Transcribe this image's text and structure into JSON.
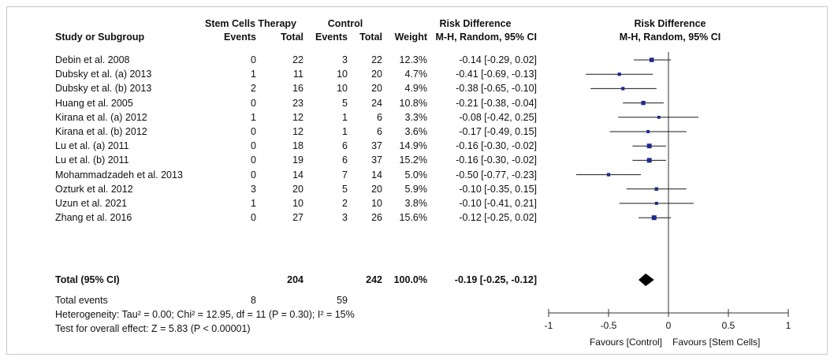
{
  "chart_data": {
    "type": "forest",
    "group_headers": {
      "experimental": "Stem Cells Therapy",
      "control": "Control",
      "effect_stat": "Risk Difference",
      "effect_plot": "Risk Difference"
    },
    "column_headers": {
      "study": "Study or Subgroup",
      "exp_events": "Events",
      "exp_total": "Total",
      "ctl_events": "Events",
      "ctl_total": "Total",
      "weight": "Weight",
      "method_stat": "M-H, Random, 95% CI",
      "method_plot": "M-H, Random, 95% CI"
    },
    "studies": [
      {
        "name": "Debin et al. 2008",
        "exp_events": "0",
        "exp_total": "22",
        "ctl_events": "3",
        "ctl_total": "22",
        "weight": "12.3%",
        "ci_text": "-0.14 [-0.29, 0.02]",
        "rd": -0.14,
        "lo": -0.29,
        "hi": 0.02
      },
      {
        "name": "Dubsky et al. (a) 2013",
        "exp_events": "1",
        "exp_total": "11",
        "ctl_events": "10",
        "ctl_total": "20",
        "weight": "4.7%",
        "ci_text": "-0.41 [-0.69, -0.13]",
        "rd": -0.41,
        "lo": -0.69,
        "hi": -0.13
      },
      {
        "name": "Dubsky et al. (b) 2013",
        "exp_events": "2",
        "exp_total": "16",
        "ctl_events": "10",
        "ctl_total": "20",
        "weight": "4.9%",
        "ci_text": "-0.38 [-0.65, -0.10]",
        "rd": -0.38,
        "lo": -0.65,
        "hi": -0.1
      },
      {
        "name": "Huang et al. 2005",
        "exp_events": "0",
        "exp_total": "23",
        "ctl_events": "5",
        "ctl_total": "24",
        "weight": "10.8%",
        "ci_text": "-0.21 [-0.38, -0.04]",
        "rd": -0.21,
        "lo": -0.38,
        "hi": -0.04
      },
      {
        "name": "Kirana et al. (a) 2012",
        "exp_events": "1",
        "exp_total": "12",
        "ctl_events": "1",
        "ctl_total": "6",
        "weight": "3.3%",
        "ci_text": "-0.08 [-0.42, 0.25]",
        "rd": -0.08,
        "lo": -0.42,
        "hi": 0.25
      },
      {
        "name": "Kirana et al. (b) 2012",
        "exp_events": "0",
        "exp_total": "12",
        "ctl_events": "1",
        "ctl_total": "6",
        "weight": "3.6%",
        "ci_text": "-0.17 [-0.49, 0.15]",
        "rd": -0.17,
        "lo": -0.49,
        "hi": 0.15
      },
      {
        "name": "Lu et al. (a) 2011",
        "exp_events": "0",
        "exp_total": "18",
        "ctl_events": "6",
        "ctl_total": "37",
        "weight": "14.9%",
        "ci_text": "-0.16 [-0.30, -0.02]",
        "rd": -0.16,
        "lo": -0.3,
        "hi": -0.02
      },
      {
        "name": "Lu et al. (b) 2011",
        "exp_events": "0",
        "exp_total": "19",
        "ctl_events": "6",
        "ctl_total": "37",
        "weight": "15.2%",
        "ci_text": "-0.16 [-0.30, -0.02]",
        "rd": -0.16,
        "lo": -0.3,
        "hi": -0.02
      },
      {
        "name": "Mohammadzadeh et al. 2013",
        "exp_events": "0",
        "exp_total": "14",
        "ctl_events": "7",
        "ctl_total": "14",
        "weight": "5.0%",
        "ci_text": "-0.50 [-0.77, -0.23]",
        "rd": -0.5,
        "lo": -0.77,
        "hi": -0.23
      },
      {
        "name": "Ozturk et al. 2012",
        "exp_events": "3",
        "exp_total": "20",
        "ctl_events": "5",
        "ctl_total": "20",
        "weight": "5.9%",
        "ci_text": "-0.10 [-0.35, 0.15]",
        "rd": -0.1,
        "lo": -0.35,
        "hi": 0.15
      },
      {
        "name": "Uzun et al. 2021",
        "exp_events": "1",
        "exp_total": "10",
        "ctl_events": "2",
        "ctl_total": "10",
        "weight": "3.8%",
        "ci_text": "-0.10 [-0.41, 0.21]",
        "rd": -0.1,
        "lo": -0.41,
        "hi": 0.21
      },
      {
        "name": "Zhang et al. 2016",
        "exp_events": "0",
        "exp_total": "27",
        "ctl_events": "3",
        "ctl_total": "26",
        "weight": "15.6%",
        "ci_text": "-0.12 [-0.25, 0.02]",
        "rd": -0.12,
        "lo": -0.25,
        "hi": 0.02
      }
    ],
    "total": {
      "label": "Total (95% CI)",
      "exp_total": "204",
      "ctl_total": "242",
      "weight": "100.0%",
      "ci_text": "-0.19 [-0.25, -0.12]",
      "rd": -0.19,
      "lo": -0.25,
      "hi": -0.12
    },
    "total_events": {
      "label": "Total events",
      "exp_events": "8",
      "ctl_events": "59"
    },
    "heterogeneity": "Heterogeneity: Tau² = 0.00; Chi² = 12.95, df = 11 (P = 0.30); I² = 15%",
    "overall_effect": "Test for overall effect: Z = 5.83 (P < 0.00001)",
    "axis": {
      "xlim": [
        -1,
        1
      ],
      "ticks": [
        -1,
        -0.5,
        0,
        0.5,
        1
      ],
      "tick_labels": [
        "-1",
        "-0.5",
        "0",
        "0.5",
        "1"
      ],
      "left_label": "Favours [Control]",
      "right_label": "Favours [Stem Cells]"
    }
  }
}
